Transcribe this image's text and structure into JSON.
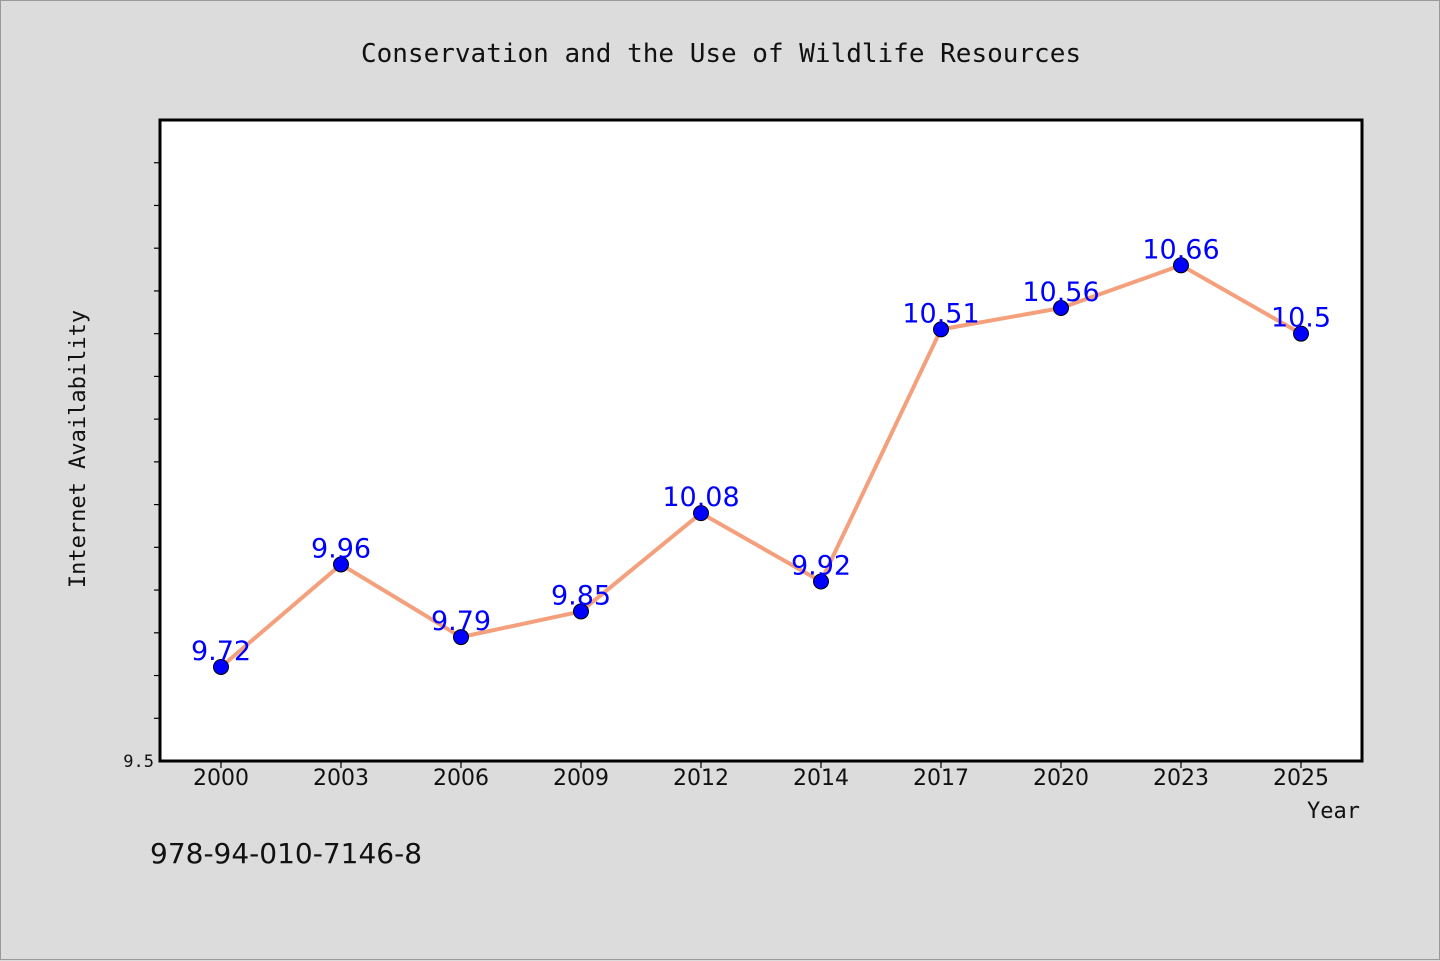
{
  "chart_data": {
    "type": "line",
    "title": "Conservation and the Use of Wildlife Resources",
    "xlabel": "Year",
    "ylabel": "Internet Availability",
    "categories": [
      "2000",
      "2003",
      "2006",
      "2009",
      "2012",
      "2014",
      "2017",
      "2020",
      "2023",
      "2025"
    ],
    "values": [
      9.72,
      9.96,
      9.79,
      9.85,
      10.08,
      9.92,
      10.51,
      10.56,
      10.66,
      10.5
    ],
    "data_labels": [
      "9.72",
      "9.96",
      "9.79",
      "9.85",
      "10.08",
      "9.92",
      "10.51",
      "10.56",
      "10.66",
      "10.5"
    ],
    "ytick_labels": [
      "9.5"
    ],
    "ylim": [
      9.5,
      11.0
    ],
    "ytick_step_minor": 0.1,
    "grid": false,
    "line_color": "#f4a07c",
    "marker_color": "#0000ff",
    "label_color": "#0000ff",
    "background_color": "#dcdcdc",
    "plot_background": "#ffffff"
  },
  "footer": {
    "isbn": "978-94-010-7146-8"
  }
}
